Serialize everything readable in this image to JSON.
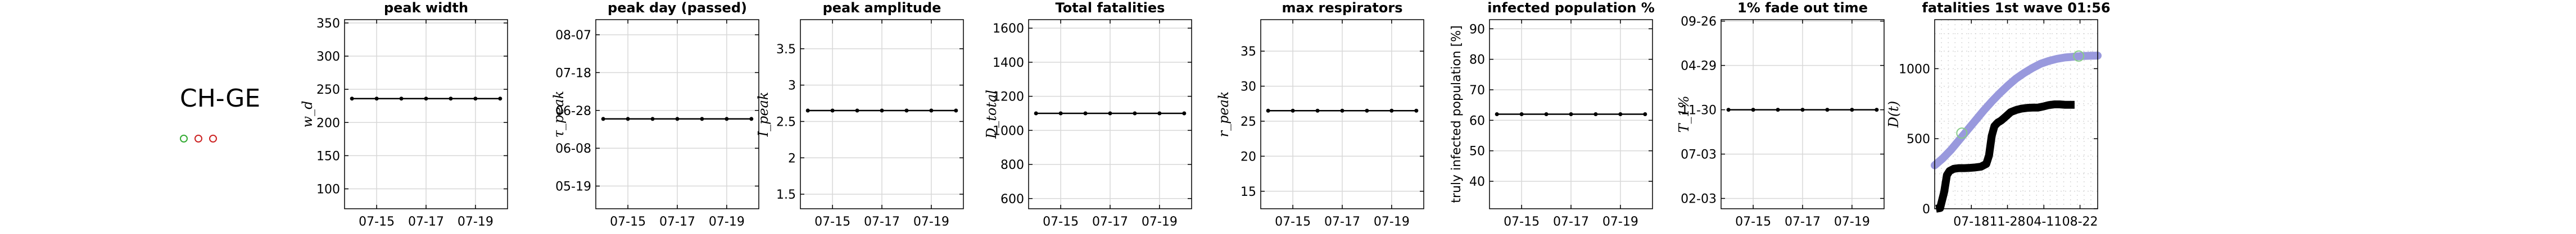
{
  "country": "CH-GE",
  "status_dots": [
    {
      "state": "ok",
      "color": "#33aa33"
    },
    {
      "state": "fail",
      "color": "#cc2222"
    },
    {
      "state": "fail",
      "color": "#cc2222"
    }
  ],
  "colors": {
    "fit_line": "#9999dd",
    "data_line": "#000000",
    "marker": "#88cc88",
    "grid": "#d8d8d8",
    "spine": "#000000"
  },
  "chart_data": [
    {
      "type": "scatter",
      "title": "peak width",
      "ylabel": "w_d",
      "ytick_labels": [
        "100",
        "150",
        "200",
        "250",
        "300",
        "350"
      ],
      "ytick_values": [
        100,
        150,
        200,
        250,
        300,
        350
      ],
      "ylim": [
        70,
        355
      ],
      "xtick_labels": [
        "07-15",
        "07-17",
        "07-19"
      ],
      "xtick_values": [
        1,
        3,
        5
      ],
      "xlim": [
        -0.3,
        6.3
      ],
      "x": [
        0,
        1,
        2,
        3,
        4,
        5,
        6
      ],
      "y": [
        236,
        236,
        236,
        236,
        236,
        236,
        236
      ],
      "grid": true
    },
    {
      "type": "scatter",
      "title": "peak day (passed)",
      "ylabel": "τ_peak",
      "ytick_labels": [
        "05-19",
        "06-08",
        "06-28",
        "07-18",
        "08-07"
      ],
      "ytick_values": [
        0,
        20,
        40,
        60,
        80
      ],
      "ylim": [
        -12,
        88
      ],
      "xtick_labels": [
        "07-15",
        "07-17",
        "07-19"
      ],
      "xtick_values": [
        1,
        3,
        5
      ],
      "xlim": [
        -0.3,
        6.3
      ],
      "x": [
        0,
        1,
        2,
        3,
        4,
        5,
        6
      ],
      "y": [
        35.5,
        35.5,
        35.5,
        35.5,
        35.5,
        35.5,
        35.5
      ],
      "grid": true
    },
    {
      "type": "scatter",
      "title": "peak amplitude",
      "ylabel": "I_peak",
      "ytick_labels": [
        "1.5",
        "2",
        "2.5",
        "3",
        "3.5"
      ],
      "ytick_values": [
        1.5,
        2,
        2.5,
        3,
        3.5
      ],
      "ylim": [
        1.3,
        3.9
      ],
      "xtick_labels": [
        "07-15",
        "07-17",
        "07-19"
      ],
      "xtick_values": [
        1,
        3,
        5
      ],
      "xlim": [
        -0.3,
        6.3
      ],
      "x": [
        0,
        1,
        2,
        3,
        4,
        5,
        6
      ],
      "y": [
        2.65,
        2.65,
        2.65,
        2.65,
        2.65,
        2.65,
        2.65
      ],
      "grid": true
    },
    {
      "type": "scatter",
      "title": "Total fatalities",
      "ylabel": "D_total",
      "ytick_labels": [
        "600",
        "800",
        "1000",
        "1200",
        "1400",
        "1600"
      ],
      "ytick_values": [
        600,
        800,
        1000,
        1200,
        1400,
        1600
      ],
      "ylim": [
        540,
        1650
      ],
      "xtick_labels": [
        "07-15",
        "07-17",
        "07-19"
      ],
      "xtick_values": [
        1,
        3,
        5
      ],
      "xlim": [
        -0.3,
        6.3
      ],
      "x": [
        0,
        1,
        2,
        3,
        4,
        5,
        6
      ],
      "y": [
        1100,
        1100,
        1100,
        1100,
        1100,
        1100,
        1100
      ],
      "grid": true
    },
    {
      "type": "scatter",
      "title": "max respirators",
      "ylabel": "r_peak",
      "ytick_labels": [
        "15",
        "20",
        "25",
        "30",
        "35"
      ],
      "ytick_values": [
        15,
        20,
        25,
        30,
        35
      ],
      "ylim": [
        12.5,
        39.5
      ],
      "xtick_labels": [
        "07-15",
        "07-17",
        "07-19"
      ],
      "xtick_values": [
        1,
        3,
        5
      ],
      "xlim": [
        -0.3,
        6.3
      ],
      "x": [
        0,
        1,
        2,
        3,
        4,
        5,
        6
      ],
      "y": [
        26.5,
        26.5,
        26.5,
        26.5,
        26.5,
        26.5,
        26.5
      ],
      "grid": true
    },
    {
      "type": "scatter",
      "title": "infected population %",
      "ylabel": "truly infected population [%]",
      "ytick_labels": [
        "40",
        "50",
        "60",
        "70",
        "80",
        "90"
      ],
      "ytick_values": [
        40,
        50,
        60,
        70,
        80,
        90
      ],
      "ylim": [
        31,
        93
      ],
      "xtick_labels": [
        "07-15",
        "07-17",
        "07-19"
      ],
      "xtick_values": [
        1,
        3,
        5
      ],
      "xlim": [
        -0.3,
        6.3
      ],
      "x": [
        0,
        1,
        2,
        3,
        4,
        5,
        6
      ],
      "y": [
        62,
        62,
        62,
        62,
        62,
        62,
        62
      ],
      "grid": true
    },
    {
      "type": "scatter",
      "title": "1% fade out time",
      "ylabel": "T_1%",
      "ytick_labels": [
        "02-03",
        "07-03",
        "11-30",
        "04-29",
        "09-26"
      ],
      "ytick_values": [
        0,
        150,
        300,
        450,
        600
      ],
      "ylim": [
        -35,
        605
      ],
      "xtick_labels": [
        "07-15",
        "07-17",
        "07-19"
      ],
      "xtick_values": [
        1,
        3,
        5
      ],
      "xlim": [
        -0.3,
        6.3
      ],
      "x": [
        0,
        1,
        2,
        3,
        4,
        5,
        6
      ],
      "y": [
        300,
        300,
        300,
        300,
        300,
        300,
        300
      ],
      "grid": true
    },
    {
      "type": "line",
      "title": "fatalities 1st wave 01:56",
      "ylabel": "D(t)",
      "ytick_labels": [
        "0",
        "500",
        "1000"
      ],
      "ytick_values": [
        0,
        500,
        1000
      ],
      "ylim": [
        0,
        1350
      ],
      "xtick_labels": [
        "07-18",
        "11-28",
        "04-11",
        "08-22"
      ],
      "xtick_values": [
        135,
        268,
        402,
        535
      ],
      "xlim": [
        0,
        600
      ],
      "series": [
        {
          "role": "fit",
          "x": [
            0,
            30,
            60,
            90,
            120,
            150,
            180,
            210,
            240,
            270,
            300,
            330,
            360,
            390,
            420,
            450,
            480,
            510,
            540,
            570,
            600
          ],
          "y": [
            310,
            360,
            420,
            490,
            560,
            630,
            700,
            765,
            825,
            880,
            930,
            970,
            1005,
            1035,
            1055,
            1070,
            1080,
            1085,
            1090,
            1092,
            1093
          ]
        },
        {
          "role": "data",
          "x": [
            5,
            20,
            35,
            45,
            55,
            70,
            90,
            110,
            130,
            150,
            170,
            190,
            200,
            210,
            220,
            232,
            245,
            260,
            280,
            300,
            320,
            340,
            360,
            380,
            400,
            420,
            440,
            460,
            480,
            500,
            515
          ],
          "y": [
            0,
            5,
            120,
            240,
            270,
            285,
            290,
            290,
            292,
            295,
            300,
            320,
            380,
            520,
            590,
            615,
            630,
            655,
            690,
            705,
            715,
            720,
            722,
            722,
            730,
            740,
            745,
            745,
            742,
            742,
            742
          ]
        },
        {
          "role": "markers",
          "x": [
            100,
            530
          ],
          "y": [
            540,
            1090
          ]
        }
      ],
      "grid": true
    }
  ]
}
